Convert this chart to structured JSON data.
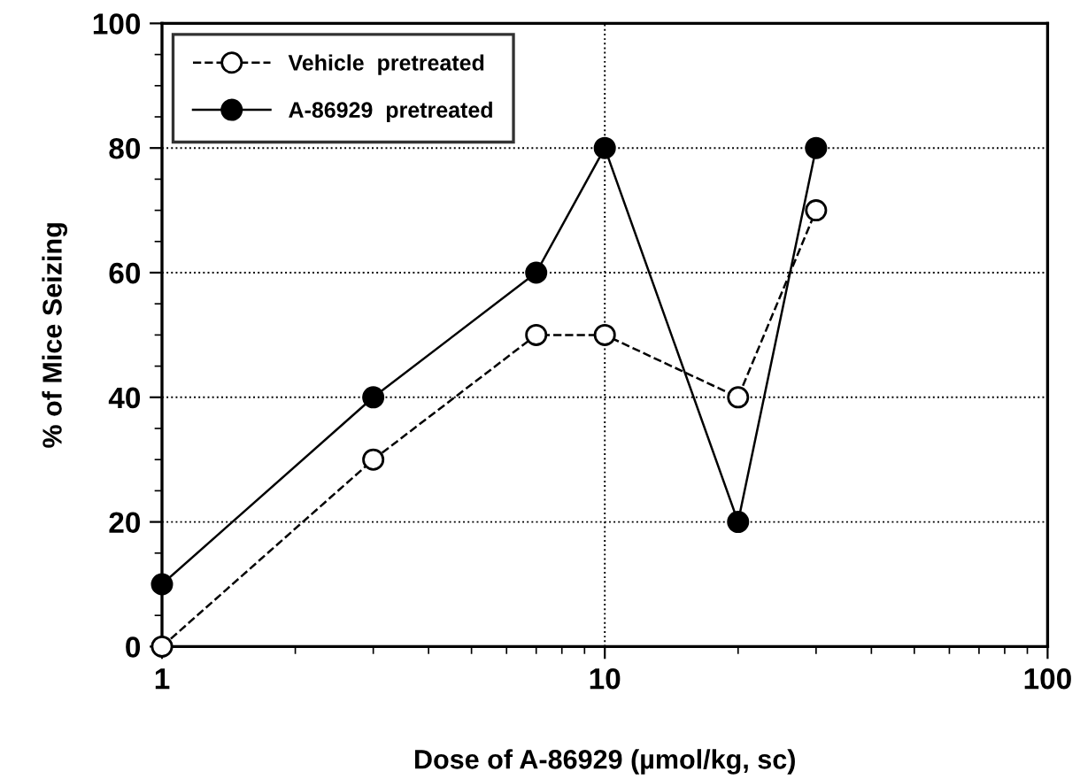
{
  "chart_data": {
    "type": "line",
    "xlabel": "Dose of A-86929 (µmol/kg, sc)",
    "ylabel": "% of Mice Seizing",
    "log": "x",
    "x": [
      1,
      3,
      7,
      10,
      20,
      30
    ],
    "series": [
      {
        "name": "Vehicle  pretreated",
        "color": "#000000",
        "line_style": "dashed",
        "values": [
          0,
          30,
          50,
          50,
          40,
          70
        ]
      },
      {
        "name": "A-86929  pretreated",
        "color": "#000000",
        "line_style": "solid",
        "values": [
          10,
          40,
          60,
          80,
          20,
          80
        ]
      }
    ],
    "xlim": [
      1,
      100
    ],
    "xticks": [
      1,
      10,
      100
    ],
    "ylim": [
      0,
      100
    ],
    "yticks": [
      0,
      20,
      40,
      60,
      80,
      100
    ],
    "grid": true,
    "legend": "top left",
    "marker": "circle"
  }
}
